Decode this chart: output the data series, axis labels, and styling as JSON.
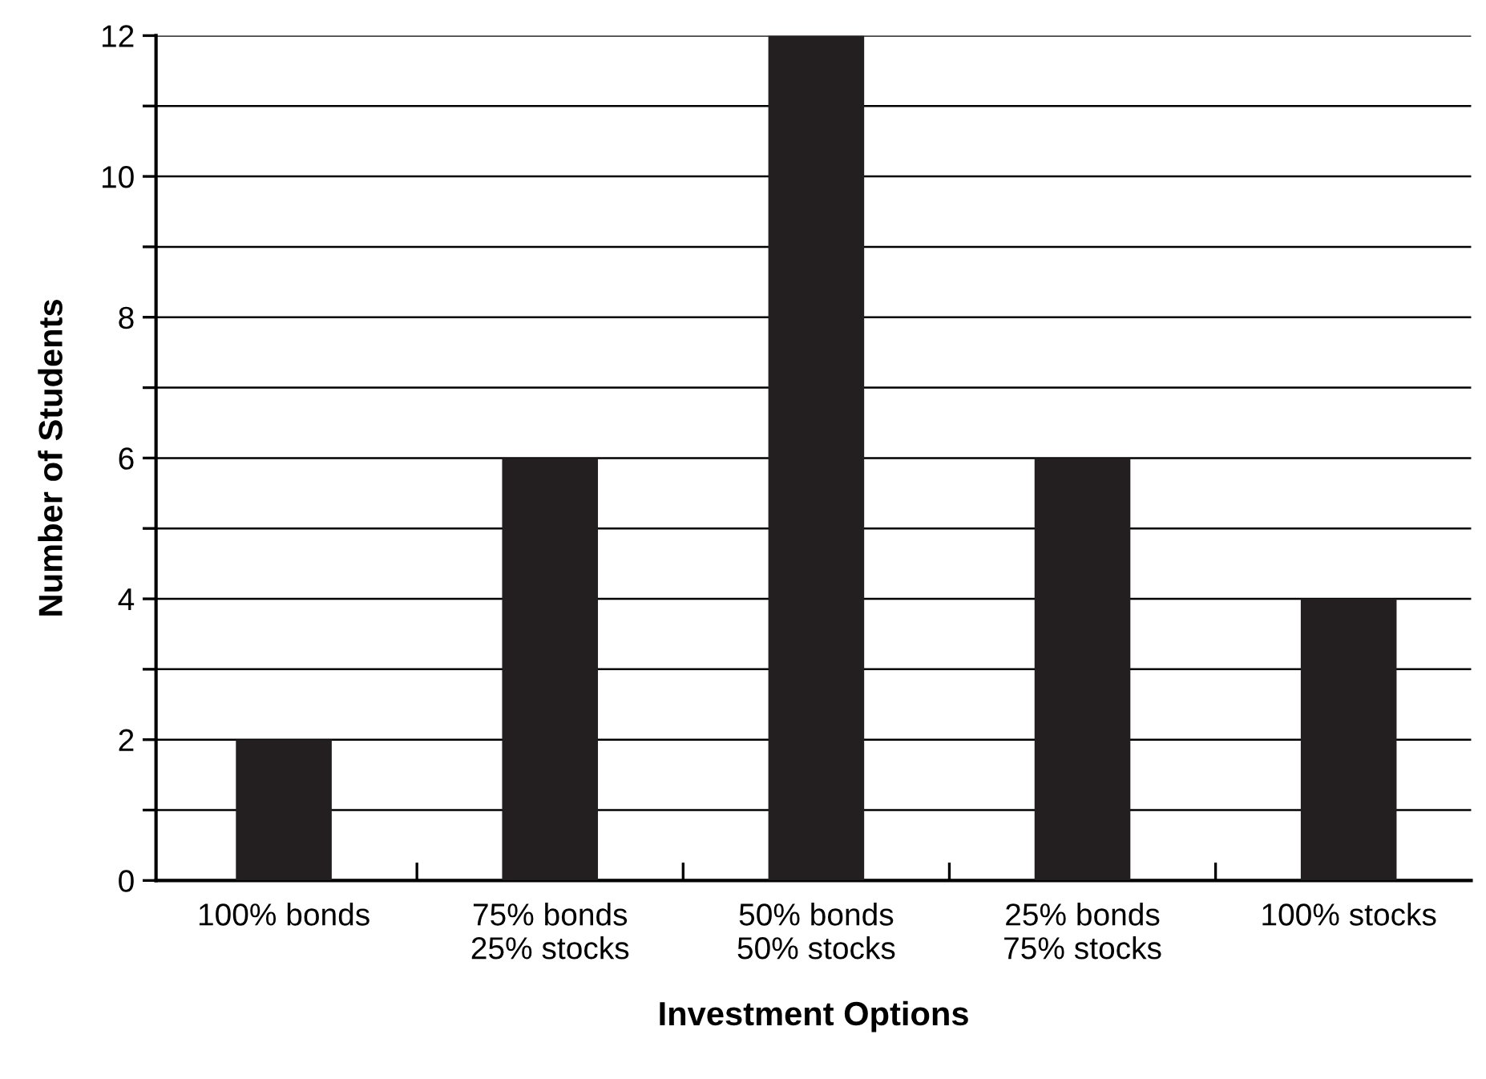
{
  "chart_data": {
    "type": "bar",
    "xlabel": "Investment Options",
    "ylabel": "Number of Students",
    "categories": [
      "100% bonds",
      "75% bonds\n25% stocks",
      "50% bonds\n50% stocks",
      "25% bonds\n75% stocks",
      "100% stocks"
    ],
    "values": [
      2,
      6,
      12,
      6,
      4
    ],
    "color": "#231f20",
    "ylim": [
      0,
      12
    ],
    "yticks": [
      0,
      {
        "value": 1,
        "label": null
      },
      2,
      {
        "value": 3,
        "label": null
      },
      4,
      {
        "value": 5,
        "label": null
      },
      6,
      {
        "value": 7,
        "label": null
      },
      8,
      {
        "value": 9,
        "label": null
      },
      10,
      {
        "value": 11,
        "label": null
      },
      12
    ],
    "grid": "y",
    "legend": false
  }
}
